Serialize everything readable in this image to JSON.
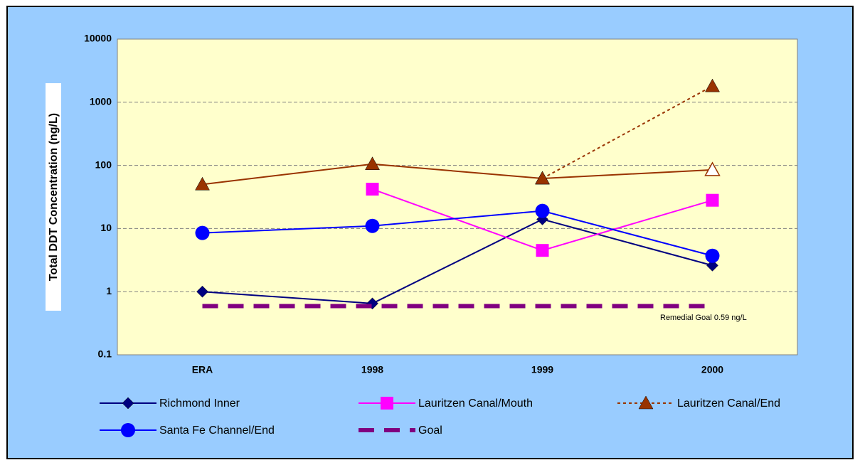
{
  "chart_data": {
    "type": "line",
    "y_label": "Total DDT Concentration (ng/L)",
    "annotation": "Remedial Goal 0.59 ng/L",
    "categories": [
      "ERA",
      "1998",
      "1999",
      "2000"
    ],
    "log_y": true,
    "grid": true,
    "ylim": [
      0.1,
      10000
    ],
    "yticks": [
      0.1,
      1,
      10,
      100,
      1000,
      10000
    ],
    "series": [
      {
        "name": "Richmond Inner",
        "color": "#000080",
        "marker": "diamond",
        "dash": false,
        "values": [
          1.0,
          0.65,
          14,
          2.6
        ]
      },
      {
        "name": "Lauritzen Canal/Mouth",
        "color": "#ff00ff",
        "marker": "square",
        "dash": false,
        "values": [
          null,
          42,
          4.5,
          28
        ]
      },
      {
        "name": "Lauritzen Canal/End",
        "color": "#993300",
        "marker": "triangle",
        "dash": true,
        "values": [
          null,
          null,
          62,
          1800
        ]
      },
      {
        "name": "Santa Fe Channel/End",
        "color": "#0000ff",
        "marker": "circle",
        "dash": false,
        "values": [
          8.5,
          11,
          19,
          3.7
        ]
      },
      {
        "name": "Goal",
        "color": "#800080",
        "marker": "none",
        "dash": true,
        "thick": true,
        "values": [
          0.59,
          0.59,
          0.59,
          0.59
        ]
      },
      {
        "color": "#993300",
        "marker": "triangle",
        "dash": false,
        "hollow": [
          false,
          false,
          false,
          true
        ],
        "values": [
          50,
          105,
          62,
          85
        ]
      }
    ]
  }
}
